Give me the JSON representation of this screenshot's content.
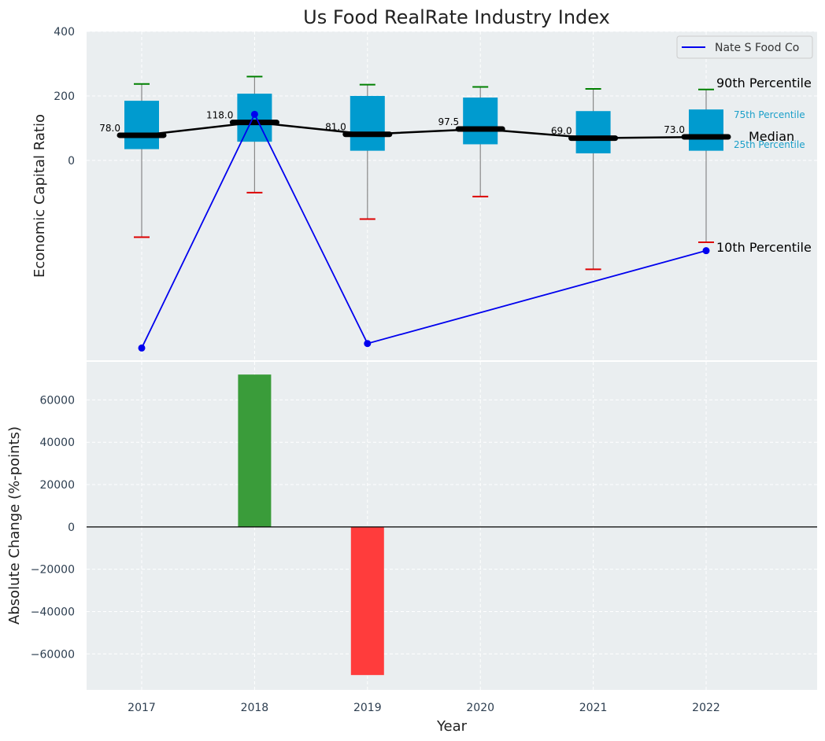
{
  "chart_data": [
    {
      "type": "box",
      "title": "Us Food RealRate Industry Index",
      "ylabel": "Economic Capital Ratio",
      "xlabel": "",
      "categories": [
        "2017",
        "2018",
        "2019",
        "2020",
        "2021",
        "2022"
      ],
      "ylim": [
        -620,
        400
      ],
      "yticks": [
        0,
        200,
        400
      ],
      "grid": true,
      "boxes": [
        {
          "year": "2017",
          "p10": -238,
          "p25": 35,
          "median": 78.0,
          "p75": 185,
          "p90": 237
        },
        {
          "year": "2018",
          "p10": -100,
          "p25": 58,
          "median": 118.0,
          "p75": 207,
          "p90": 260
        },
        {
          "year": "2019",
          "p10": -182,
          "p25": 30,
          "median": 81.0,
          "p75": 200,
          "p90": 235
        },
        {
          "year": "2020",
          "p10": -112,
          "p25": 50,
          "median": 97.5,
          "p75": 195,
          "p90": 228
        },
        {
          "year": "2021",
          "p10": -338,
          "p25": 22,
          "median": 69.0,
          "p75": 153,
          "p90": 222
        },
        {
          "year": "2022",
          "p10": -254,
          "p25": 30,
          "median": 73.0,
          "p75": 158,
          "p90": 220
        }
      ],
      "median_labels": [
        "78.0",
        "118.0",
        "81.0",
        "97.5",
        "69.0",
        "73.0"
      ],
      "series": [
        {
          "name": "Nate S Food Co",
          "color": "#0000ee",
          "points": [
            {
              "x": "2017",
              "y": -582
            },
            {
              "x": "2018",
              "y": 143
            },
            {
              "x": "2019",
              "y": -568
            },
            {
              "x": "2022",
              "y": -280
            }
          ]
        }
      ],
      "legend": {
        "position": "top-right",
        "entries": [
          "Nate S Food Co"
        ]
      },
      "annotations": {
        "p90": "90th Percentile",
        "p75": "75th Percentile",
        "median": "Median",
        "p25": "25th Percentile",
        "p10": "10th Percentile"
      }
    },
    {
      "type": "bar",
      "ylabel": "Absolute Change (%-points)",
      "xlabel": "Year",
      "categories": [
        "2017",
        "2018",
        "2019",
        "2020",
        "2021",
        "2022"
      ],
      "values": [
        0,
        72000,
        -70000,
        0,
        0,
        0
      ],
      "ylim": [
        -77000,
        78000
      ],
      "yticks": [
        -60000,
        -40000,
        -20000,
        0,
        20000,
        40000,
        60000
      ],
      "ytick_labels": [
        "−60000",
        "−40000",
        "−20000",
        "0",
        "20000",
        "40000",
        "60000"
      ],
      "grid": true
    }
  ],
  "colors": {
    "plot_bg": "#eaeef0",
    "box_fill": "#009bcf",
    "median_line": "#000000",
    "whisker_hi": "#008000",
    "whisker_lo": "#dd0000",
    "company_line": "#0000ee",
    "bar_up": "#3a9c3a",
    "bar_down": "#ff3c3c",
    "small_label": "#1a9fc9"
  }
}
